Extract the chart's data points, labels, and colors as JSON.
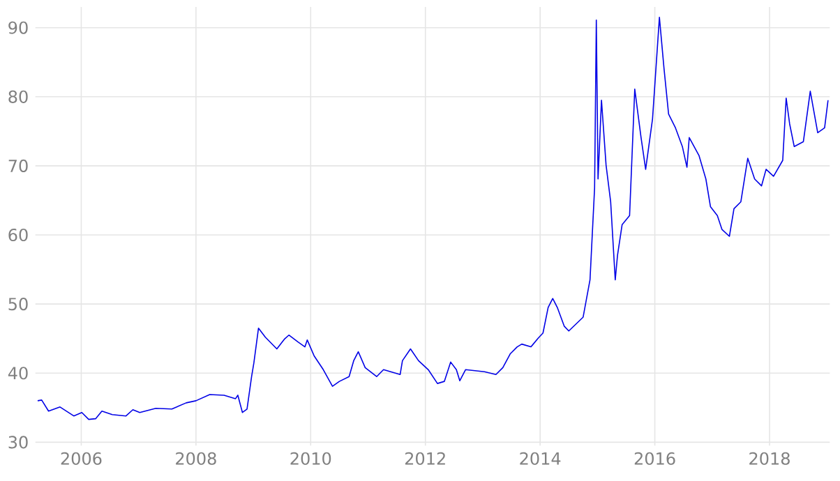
{
  "chart_data": {
    "type": "line",
    "x": [
      2005.24,
      2005.31,
      2005.43,
      2005.63,
      2005.87,
      2006.01,
      2006.13,
      2006.25,
      2006.36,
      2006.54,
      2006.78,
      2006.9,
      2007.02,
      2007.3,
      2007.58,
      2007.83,
      2008.0,
      2008.24,
      2008.49,
      2008.69,
      2008.73,
      2008.81,
      2008.89,
      2008.97,
      2009.01,
      2009.09,
      2009.21,
      2009.41,
      2009.54,
      2009.62,
      2009.78,
      2009.9,
      2009.94,
      2010.06,
      2010.22,
      2010.38,
      2010.5,
      2010.67,
      2010.75,
      2010.83,
      2010.95,
      2011.15,
      2011.27,
      2011.56,
      2011.6,
      2011.74,
      2011.88,
      2012.05,
      2012.21,
      2012.33,
      2012.44,
      2012.54,
      2012.6,
      2012.7,
      2013.03,
      2013.23,
      2013.35,
      2013.48,
      2013.6,
      2013.68,
      2013.84,
      2013.97,
      2014.05,
      2014.14,
      2014.22,
      2014.3,
      2014.42,
      2014.5,
      2014.75,
      2014.87,
      2014.95,
      2014.98,
      2015.01,
      2015.07,
      2015.15,
      2015.23,
      2015.31,
      2015.35,
      2015.43,
      2015.56,
      2015.65,
      2015.76,
      2015.84,
      2015.96,
      2016.08,
      2016.16,
      2016.24,
      2016.36,
      2016.48,
      2016.56,
      2016.6,
      2016.77,
      2016.89,
      2016.97,
      2017.09,
      2017.17,
      2017.3,
      2017.38,
      2017.5,
      2017.62,
      2017.74,
      2017.86,
      2017.94,
      2018.07,
      2018.23,
      2018.29,
      2018.35,
      2018.43,
      2018.59,
      2018.71,
      2018.84,
      2018.96,
      2019.02
    ],
    "series": [
      {
        "color": "#0000e6",
        "values": [
          36.0,
          36.1,
          34.5,
          35.1,
          33.8,
          34.3,
          33.3,
          33.4,
          34.5,
          34.0,
          33.8,
          34.7,
          34.3,
          34.9,
          34.8,
          35.7,
          36.0,
          36.9,
          36.8,
          36.3,
          36.8,
          34.3,
          34.8,
          39.5,
          41.5,
          46.5,
          45.2,
          43.5,
          44.9,
          45.5,
          44.5,
          43.8,
          44.8,
          42.5,
          40.5,
          38.1,
          38.8,
          39.5,
          41.8,
          43.1,
          40.8,
          39.5,
          40.5,
          39.8,
          41.8,
          43.5,
          41.8,
          40.5,
          38.5,
          38.8,
          41.6,
          40.5,
          38.9,
          40.5,
          40.2,
          39.8,
          40.8,
          42.8,
          43.8,
          44.2,
          43.8,
          45.1,
          45.8,
          49.5,
          50.8,
          49.5,
          46.8,
          46.1,
          48.1,
          53.5,
          66.8,
          91.1,
          68.1,
          79.5,
          70.1,
          64.8,
          53.5,
          57.1,
          61.5,
          62.8,
          81.1,
          74.1,
          69.5,
          76.8,
          91.5,
          84.1,
          77.5,
          75.5,
          72.8,
          69.8,
          74.1,
          71.5,
          68.1,
          64.1,
          62.8,
          60.8,
          59.8,
          63.8,
          64.8,
          71.1,
          68.1,
          67.1,
          69.5,
          68.5,
          70.8,
          79.8,
          76.1,
          72.8,
          73.5,
          80.8,
          74.8,
          75.5,
          79.5
        ]
      }
    ],
    "xlim": [
      2005.2,
      2019.05
    ],
    "ylim": [
      29.5,
      93
    ],
    "xticks": [
      2006,
      2008,
      2010,
      2012,
      2014,
      2016,
      2018
    ],
    "yticks": [
      30,
      40,
      50,
      60,
      70,
      80,
      90
    ],
    "grid": true,
    "marker": "none",
    "line_style": "solid"
  }
}
